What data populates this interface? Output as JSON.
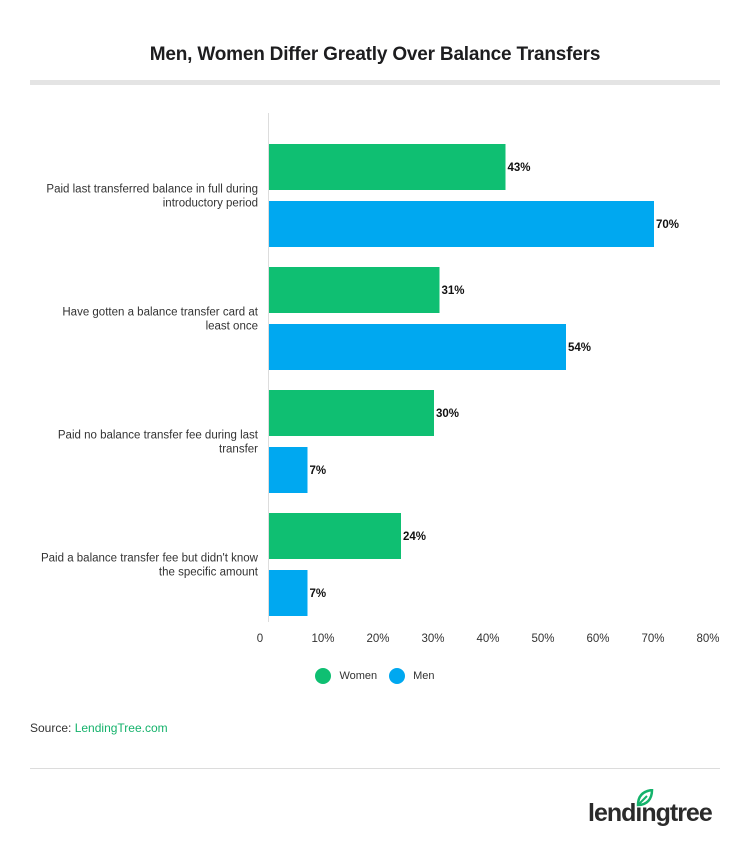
{
  "title": "Men, Women Differ Greatly Over Balance Transfers",
  "colors": {
    "women": "#0fbf72",
    "men": "#00a8f0",
    "grid_axis": "#dddddd"
  },
  "chart_data": {
    "type": "bar",
    "orientation": "horizontal",
    "categories": [
      [
        "Paid last transferred balance in full during",
        "introductory period"
      ],
      [
        "Have gotten a balance transfer card at",
        "least once"
      ],
      [
        "Paid no balance transfer fee during last",
        "transfer"
      ],
      [
        "Paid a balance transfer fee but didn't know",
        "the specific amount"
      ]
    ],
    "series": [
      {
        "name": "Women",
        "values": [
          43,
          31,
          30,
          24
        ],
        "labels": [
          "43%",
          "31%",
          "30%",
          "24%"
        ]
      },
      {
        "name": "Men",
        "values": [
          70,
          54,
          7,
          7
        ],
        "labels": [
          "70%",
          "54%",
          "7%",
          "7%"
        ]
      }
    ],
    "x_ticks": [
      {
        "value": 0,
        "label": "0"
      },
      {
        "value": 10,
        "label": "10%"
      },
      {
        "value": 20,
        "label": "20%"
      },
      {
        "value": 30,
        "label": "30%"
      },
      {
        "value": 40,
        "label": "40%"
      },
      {
        "value": 50,
        "label": "50%"
      },
      {
        "value": 60,
        "label": "60%"
      },
      {
        "value": 70,
        "label": "70%"
      },
      {
        "value": 80,
        "label": "80%"
      }
    ],
    "xlim": [
      0,
      80
    ],
    "legend_position": "bottom-center",
    "grid": false
  },
  "legend": {
    "women": "Women",
    "men": "Men"
  },
  "source": {
    "prefix": "Source: ",
    "link_text": "LendingTree.com"
  },
  "logo": {
    "text": "lendingtree"
  }
}
